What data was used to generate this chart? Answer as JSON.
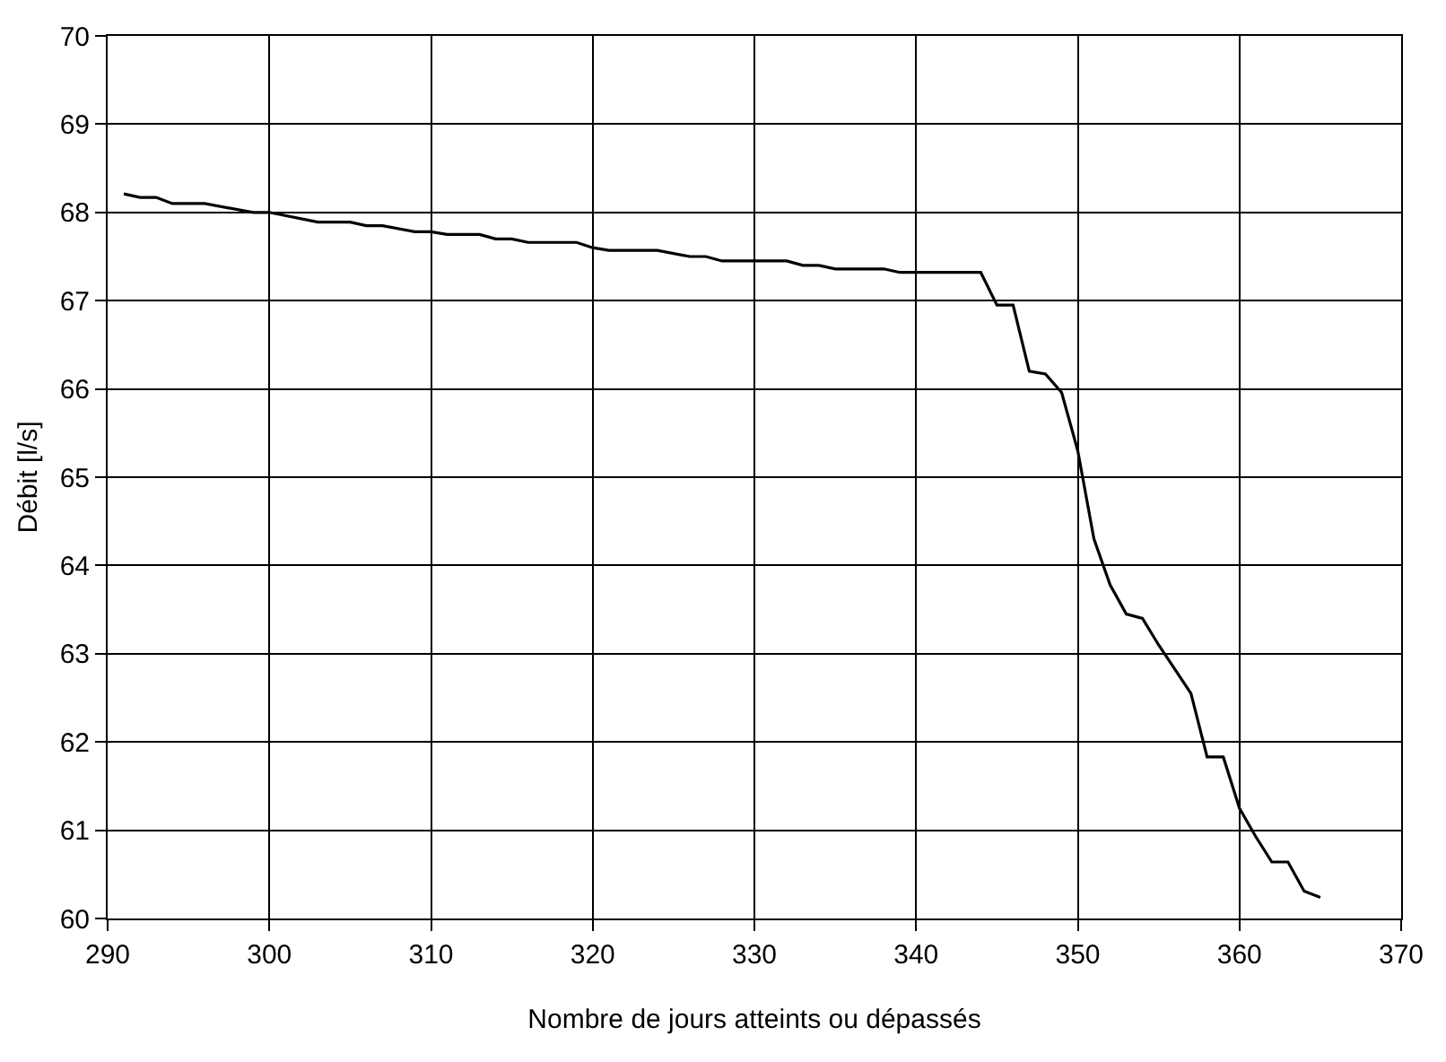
{
  "chart_data": {
    "type": "line",
    "xlabel": "Nombre de jours atteints ou dépassés",
    "ylabel": "Débit [l/s]",
    "x": [
      291,
      292,
      293,
      294,
      296,
      299,
      300,
      303,
      305,
      306,
      307,
      309,
      310,
      311,
      313,
      314,
      315,
      316,
      319,
      320,
      321,
      324,
      326,
      327,
      328,
      332,
      333,
      334,
      335,
      338,
      339,
      344,
      345,
      346,
      347,
      348,
      349,
      350,
      351,
      352,
      353,
      354,
      355,
      357,
      358,
      359,
      360,
      361,
      362,
      363,
      364,
      365
    ],
    "series": [
      {
        "color": "#000000",
        "values": [
          68.21,
          68.17,
          68.17,
          68.1,
          68.1,
          68.0,
          68.0,
          67.89,
          67.89,
          67.85,
          67.85,
          67.78,
          67.78,
          67.75,
          67.75,
          67.7,
          67.7,
          67.66,
          67.66,
          67.6,
          67.57,
          67.57,
          67.5,
          67.5,
          67.45,
          67.45,
          67.4,
          67.4,
          67.36,
          67.36,
          67.32,
          67.32,
          66.95,
          66.95,
          66.2,
          66.17,
          65.96,
          65.3,
          64.3,
          63.78,
          63.45,
          63.4,
          63.1,
          62.55,
          61.83,
          61.83,
          61.25,
          60.93,
          60.64,
          60.64,
          60.31,
          60.24
        ]
      }
    ],
    "xlim": [
      290,
      370
    ],
    "xticks": [
      290,
      300,
      310,
      320,
      330,
      340,
      350,
      360,
      370
    ],
    "ylim": [
      60,
      70
    ],
    "yticks": [
      60,
      61,
      62,
      63,
      64,
      65,
      66,
      67,
      68,
      69,
      70
    ],
    "grid": true,
    "marker": "none",
    "line_style": "solid"
  }
}
